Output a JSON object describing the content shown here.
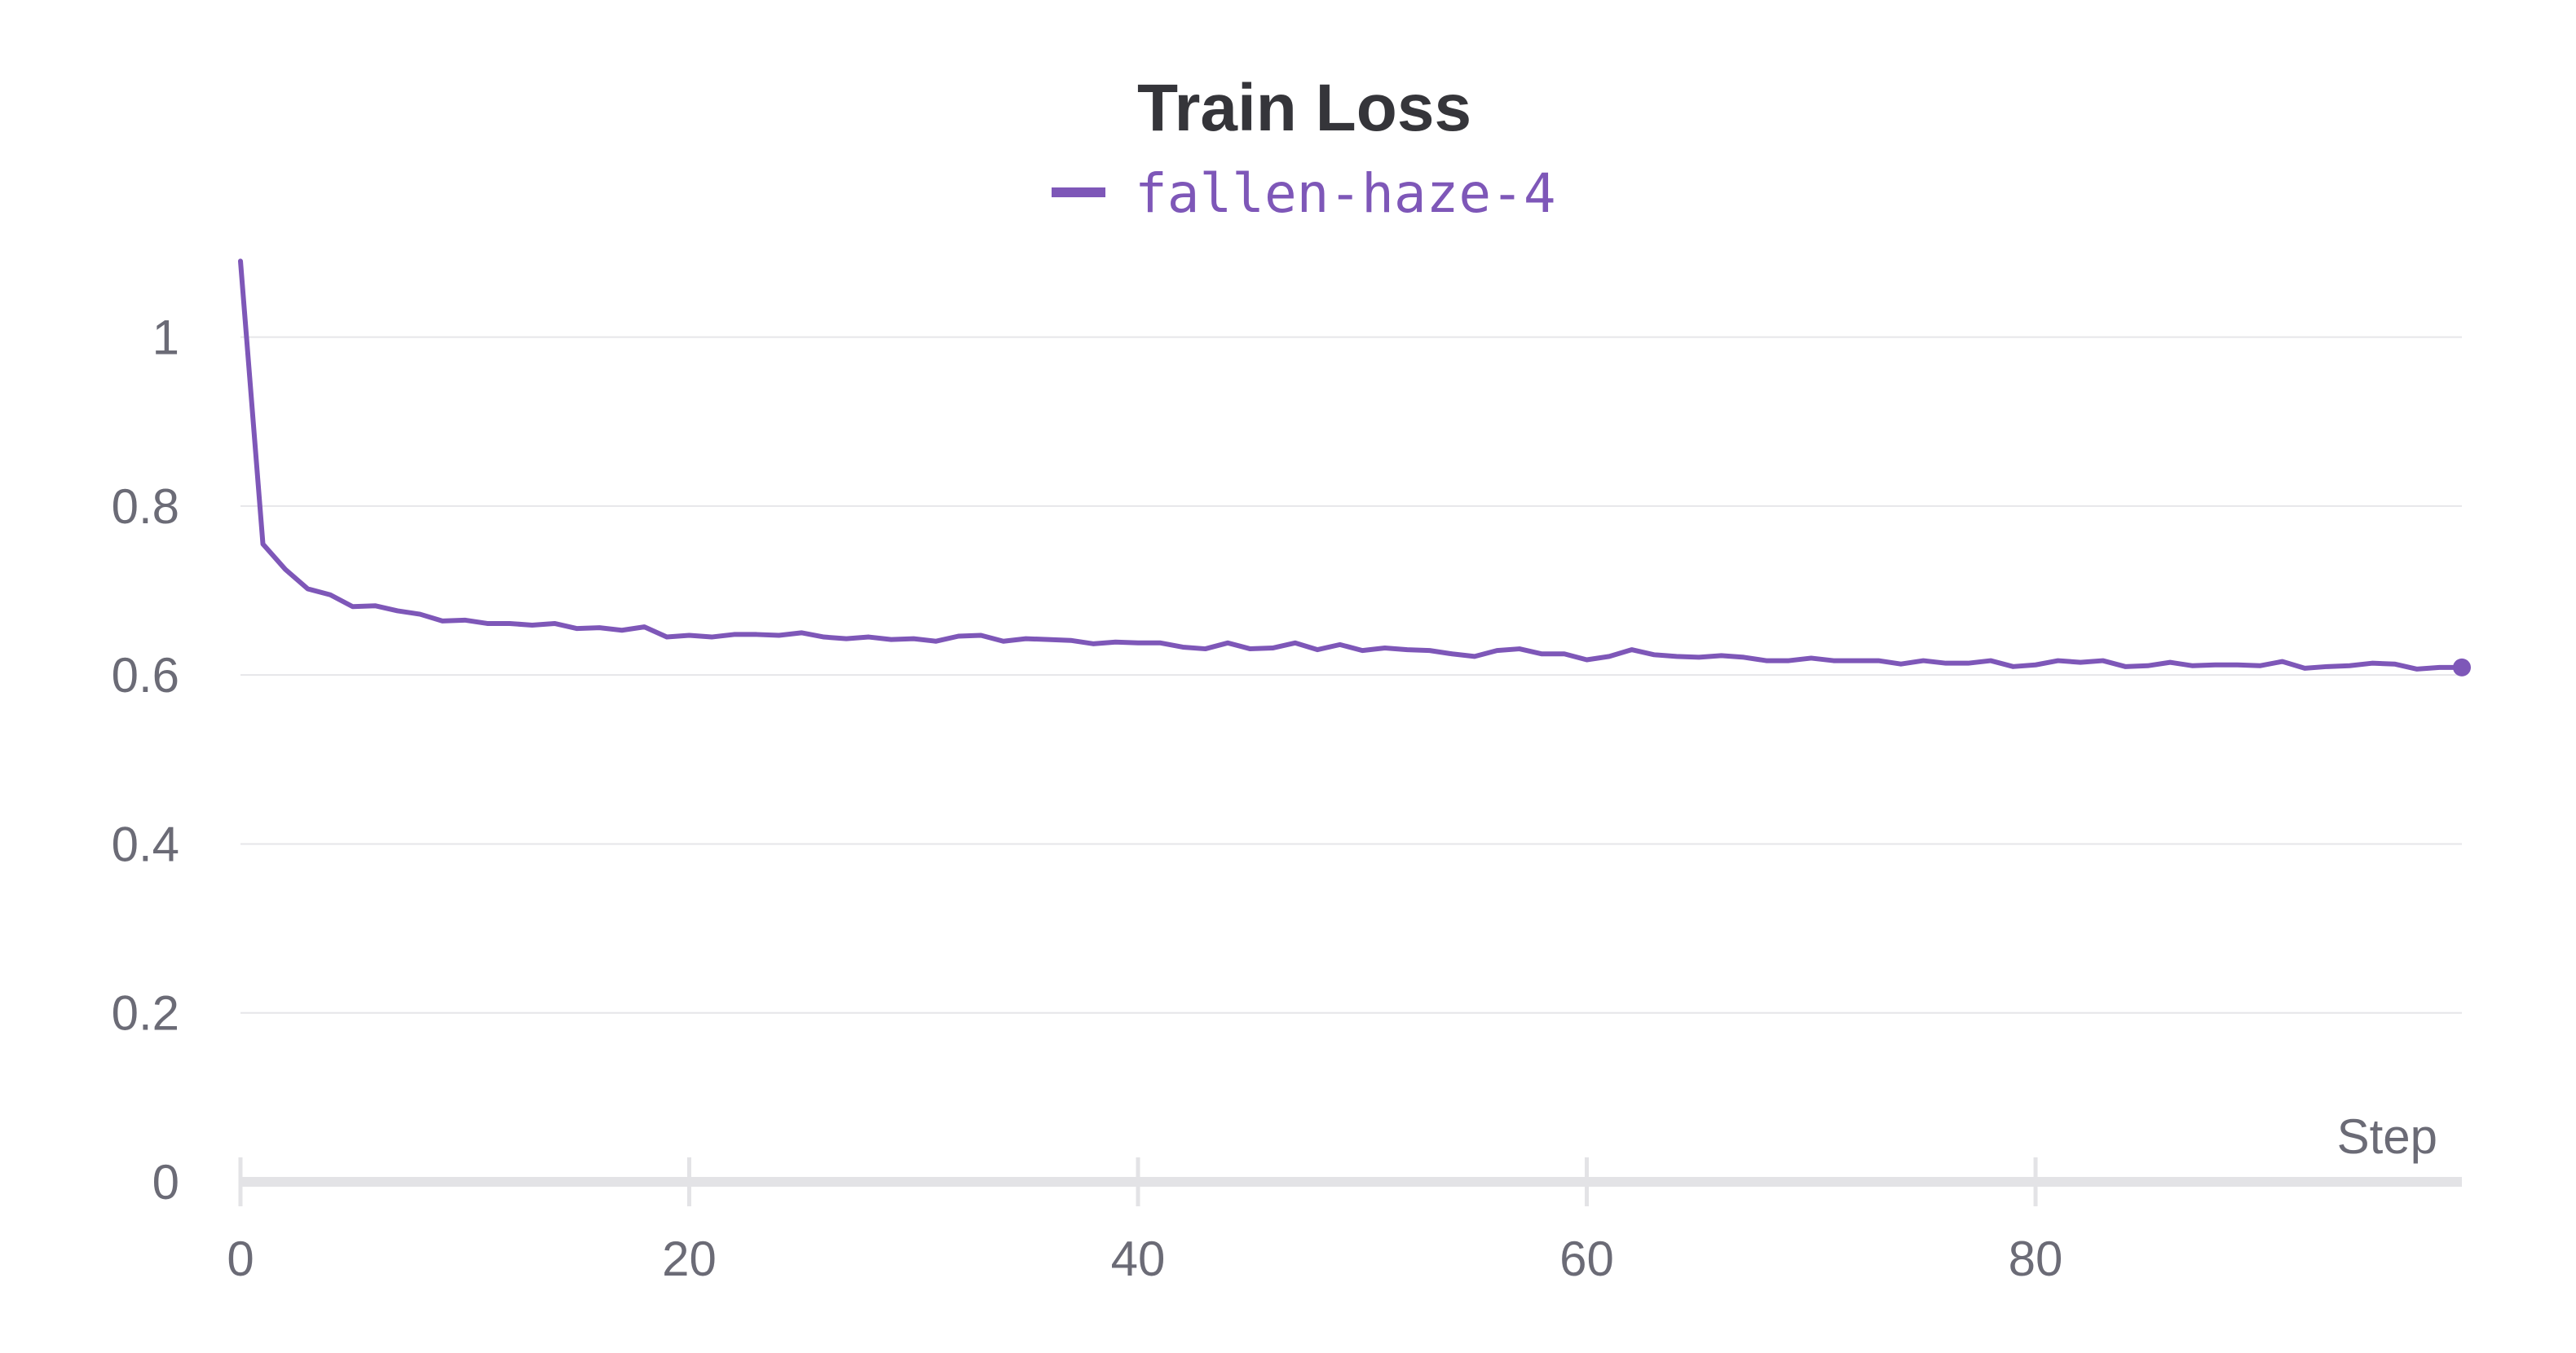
{
  "chart_data": {
    "type": "line",
    "title": "Train Loss",
    "xlabel": "Step",
    "ylabel": "",
    "xlim": [
      0,
      99
    ],
    "ylim": [
      0,
      1.1
    ],
    "x_ticks": [
      0,
      20,
      40,
      60,
      80
    ],
    "x_tick_labels": [
      "0",
      "20",
      "40",
      "60",
      "80"
    ],
    "y_ticks": [
      0,
      0.2,
      0.4,
      0.6,
      0.8,
      1
    ],
    "y_tick_labels": [
      "0",
      "0.2",
      "0.4",
      "0.6",
      "0.8",
      "1"
    ],
    "grid": true,
    "legend_position": "top-center",
    "series": [
      {
        "name": "fallen-haze-4",
        "color": "#7e57b8",
        "x": [
          0,
          1,
          2,
          3,
          4,
          5,
          6,
          7,
          8,
          9,
          10,
          11,
          12,
          13,
          14,
          15,
          16,
          17,
          18,
          19,
          20,
          21,
          22,
          23,
          24,
          25,
          26,
          27,
          28,
          29,
          30,
          31,
          32,
          33,
          34,
          35,
          36,
          37,
          38,
          39,
          40,
          41,
          42,
          43,
          44,
          45,
          46,
          47,
          48,
          49,
          50,
          51,
          52,
          53,
          54,
          55,
          56,
          57,
          58,
          59,
          60,
          61,
          62,
          63,
          64,
          65,
          66,
          67,
          68,
          69,
          70,
          71,
          72,
          73,
          74,
          75,
          76,
          77,
          78,
          79,
          80,
          81,
          82,
          83,
          84,
          85,
          86,
          87,
          88,
          89,
          90,
          91,
          92,
          93,
          94,
          95,
          96,
          97,
          98,
          99
        ],
        "values": [
          1.09,
          0.755,
          0.725,
          0.702,
          0.695,
          0.681,
          0.682,
          0.676,
          0.672,
          0.664,
          0.665,
          0.661,
          0.661,
          0.659,
          0.661,
          0.655,
          0.656,
          0.653,
          0.657,
          0.645,
          0.647,
          0.645,
          0.648,
          0.648,
          0.647,
          0.65,
          0.645,
          0.643,
          0.645,
          0.642,
          0.643,
          0.64,
          0.646,
          0.647,
          0.64,
          0.643,
          0.642,
          0.641,
          0.637,
          0.639,
          0.638,
          0.638,
          0.633,
          0.631,
          0.638,
          0.631,
          0.632,
          0.638,
          0.63,
          0.636,
          0.629,
          0.632,
          0.63,
          0.629,
          0.625,
          0.622,
          0.629,
          0.631,
          0.625,
          0.625,
          0.618,
          0.622,
          0.63,
          0.624,
          0.622,
          0.621,
          0.623,
          0.621,
          0.617,
          0.617,
          0.62,
          0.617,
          0.617,
          0.617,
          0.613,
          0.617,
          0.614,
          0.614,
          0.617,
          0.61,
          0.612,
          0.617,
          0.615,
          0.617,
          0.61,
          0.611,
          0.615,
          0.611,
          0.612,
          0.612,
          0.611,
          0.616,
          0.608,
          0.61,
          0.611,
          0.614,
          0.613,
          0.607,
          0.609,
          0.609
        ]
      }
    ]
  }
}
